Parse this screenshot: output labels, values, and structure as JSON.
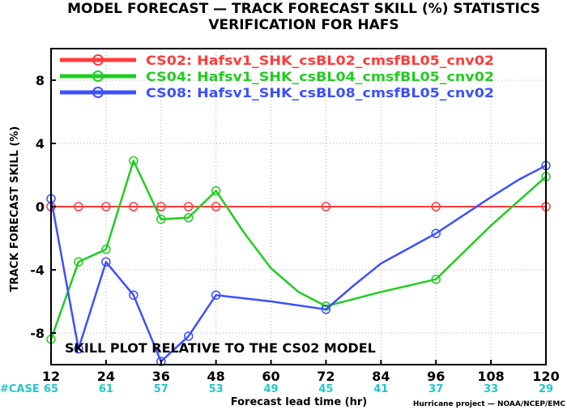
{
  "chart_data": {
    "type": "line",
    "title": "MODEL FORECAST — TRACK FORECAST SKILL (%) STATISTICS",
    "subtitle": "VERIFICATION FOR HAFS",
    "xlabel": "Forecast lead time (hr)",
    "ylabel": "TRACK FORECAST SKILL (%)",
    "xlim": [
      12,
      120
    ],
    "ylim": [
      -10,
      10
    ],
    "x_ticks": [
      12,
      24,
      36,
      48,
      60,
      72,
      84,
      96,
      108,
      120
    ],
    "y_ticks": [
      -8,
      -4,
      0,
      4,
      8
    ],
    "grid": true,
    "legend_position": "top-left",
    "annotation": "SKILL PLOT RELATIVE TO THE CS02 MODEL",
    "cases": {
      "label": "#CASE",
      "values": [
        65,
        61,
        57,
        53,
        49,
        45,
        41,
        37,
        33,
        29
      ]
    },
    "credit": "Hurricane project — NOAA/NCEP/EMC",
    "series": [
      {
        "name": "CS02: Hafsv1_SHK_csBL02_cmsfBL05_cnv02",
        "color": "#ff3b3b",
        "x": [
          12,
          18,
          24,
          30,
          36,
          42,
          48,
          72,
          96,
          120
        ],
        "values": [
          0,
          0,
          0,
          0,
          0,
          0,
          0,
          0,
          0,
          0
        ],
        "markers": [
          12,
          18,
          24,
          30,
          36,
          42,
          48,
          72,
          96,
          120
        ]
      },
      {
        "name": "CS04: Hafsv1_SHK_csBL04_cmsfBL05_cnv02",
        "color": "#22cc22",
        "x": [
          12,
          18,
          24,
          30,
          36,
          42,
          48,
          54,
          60,
          66,
          72,
          84,
          96,
          108,
          120
        ],
        "values": [
          -8.4,
          -3.5,
          -2.7,
          2.9,
          -0.8,
          -0.7,
          1.0,
          -1.6,
          -3.9,
          -5.4,
          -6.3,
          -5.4,
          -4.6,
          -1.2,
          1.9
        ],
        "markers": [
          12,
          18,
          24,
          30,
          36,
          42,
          48,
          72,
          96,
          120
        ]
      },
      {
        "name": "CS08: Hafsv1_SHK_csBL08_cmsfBL05_cnv02",
        "color": "#3c50ff",
        "x": [
          12,
          18,
          24,
          30,
          36,
          42,
          48,
          60,
          72,
          78,
          84,
          96,
          108,
          114,
          120
        ],
        "values": [
          0.5,
          -9.0,
          -3.5,
          -5.6,
          -9.8,
          -8.2,
          -5.6,
          -6.0,
          -6.5,
          -5.0,
          -3.6,
          -1.7,
          0.6,
          1.7,
          2.6
        ],
        "markers": [
          12,
          18,
          24,
          30,
          36,
          42,
          48,
          72,
          96,
          120
        ]
      }
    ]
  }
}
